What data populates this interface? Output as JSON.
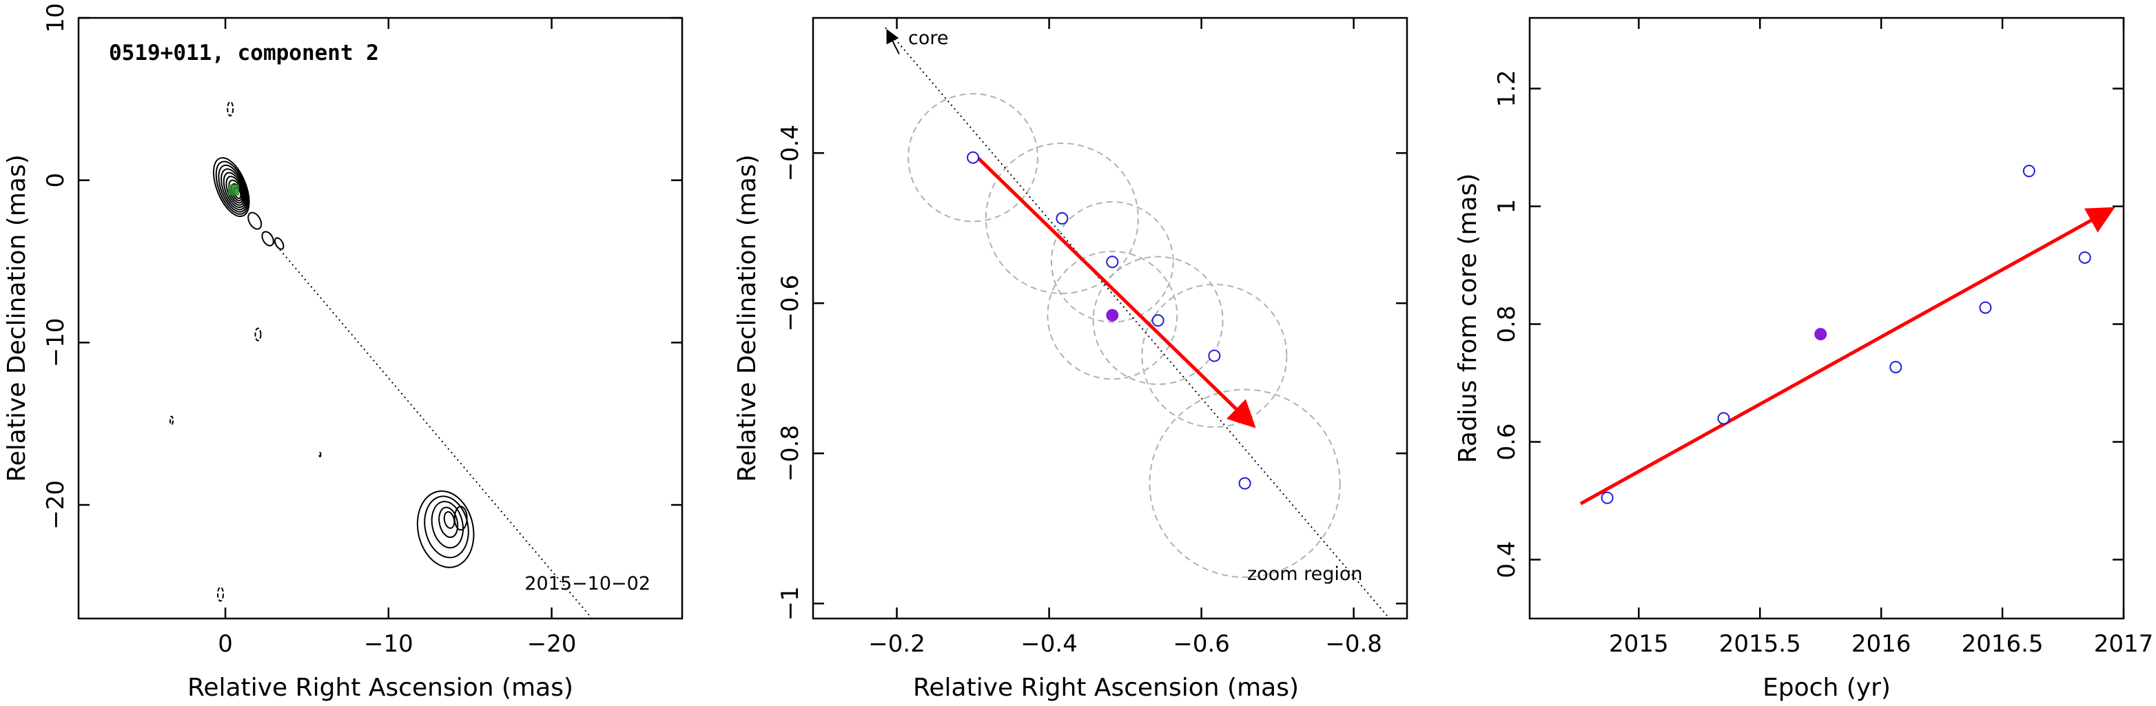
{
  "chart_data": [
    {
      "type": "contour",
      "title": "0519+011, component 2",
      "xlabel": "Relative Right Ascension (mas)",
      "ylabel": "Relative Declination (mas)",
      "xlim": [
        9,
        -28
      ],
      "ylim": [
        -27,
        10
      ],
      "x_ticks": [
        0,
        -10,
        -20
      ],
      "x_tick_labels": [
        "0",
        "−10",
        "−20"
      ],
      "y_ticks": [
        10,
        0,
        -10,
        -20
      ],
      "y_tick_labels": [
        "10",
        "0",
        "−10",
        "−20"
      ],
      "annotations": [
        "2015−10−02"
      ],
      "core_line": {
        "from": [
          0,
          0
        ],
        "to": [
          -25,
          -30
        ]
      },
      "contour_sources": [
        {
          "name": "core",
          "x": -0.4,
          "y": -0.5
        },
        {
          "name": "lobe",
          "x": -13.5,
          "y": -21.5
        }
      ],
      "component_marker": {
        "x": -0.5,
        "y": -0.6
      }
    },
    {
      "type": "scatter",
      "xlabel": "Relative Right Ascension (mas)",
      "ylabel": "Relative Declination (mas)",
      "xlim": [
        -0.09,
        -0.87
      ],
      "ylim": [
        -1.02,
        -0.22
      ],
      "x_ticks": [
        -0.2,
        -0.4,
        -0.6,
        -0.8
      ],
      "x_tick_labels": [
        "−0.2",
        "−0.4",
        "−0.6",
        "−0.8"
      ],
      "y_ticks": [
        -0.4,
        -0.6,
        -0.8,
        -1.0
      ],
      "y_tick_labels": [
        "−0.4",
        "−0.6",
        "−0.8",
        "−1"
      ],
      "annotations": [
        "core",
        "zoom region"
      ],
      "points": [
        {
          "x": -0.3,
          "y": -0.406,
          "r": 0.085
        },
        {
          "x": -0.417,
          "y": -0.487,
          "r": 0.1
        },
        {
          "x": -0.483,
          "y": -0.545,
          "r": 0.08
        },
        {
          "x": -0.483,
          "y": -0.616,
          "r": 0.085,
          "filled": true
        },
        {
          "x": -0.543,
          "y": -0.623,
          "r": 0.085
        },
        {
          "x": -0.617,
          "y": -0.67,
          "r": 0.095
        },
        {
          "x": -0.657,
          "y": -0.84,
          "r": 0.125
        }
      ],
      "arrow": {
        "from": [
          -0.3,
          -0.4
        ],
        "to": [
          -0.665,
          -0.76
        ]
      },
      "core_line": {
        "from": [
          -0.185,
          -0.233
        ],
        "to": [
          -0.847,
          -1.02
        ]
      }
    },
    {
      "type": "scatter",
      "xlabel": "Epoch (yr)",
      "ylabel": "Radius from core (mas)",
      "xlim": [
        2014.55,
        2017.0
      ],
      "ylim": [
        0.3,
        1.32
      ],
      "x_ticks": [
        2015,
        2015.5,
        2016,
        2016.5,
        2017
      ],
      "x_tick_labels": [
        "2015",
        "2015.5",
        "2016",
        "2016.5",
        "2017"
      ],
      "y_ticks": [
        0.4,
        0.6,
        0.8,
        1.0,
        1.2
      ],
      "y_tick_labels": [
        "0.4",
        "0.6",
        "0.8",
        "1",
        "1.2"
      ],
      "points": [
        {
          "x": 2014.87,
          "y": 0.505
        },
        {
          "x": 2015.35,
          "y": 0.64
        },
        {
          "x": 2015.75,
          "y": 0.783,
          "filled": true
        },
        {
          "x": 2016.06,
          "y": 0.727
        },
        {
          "x": 2016.43,
          "y": 0.828
        },
        {
          "x": 2016.61,
          "y": 1.06
        },
        {
          "x": 2016.84,
          "y": 0.913
        }
      ],
      "arrow": {
        "from": [
          2014.76,
          0.495
        ],
        "to": [
          2016.94,
          0.993
        ]
      }
    }
  ],
  "colors": {
    "axis": "#000000",
    "open_marker": "#1f1fd6",
    "filled_marker": "#8a1ad9",
    "arrow": "#ff0000",
    "circle": "#b0b0b0",
    "contour": "#000000",
    "component_marker": "#2a8a2a"
  }
}
